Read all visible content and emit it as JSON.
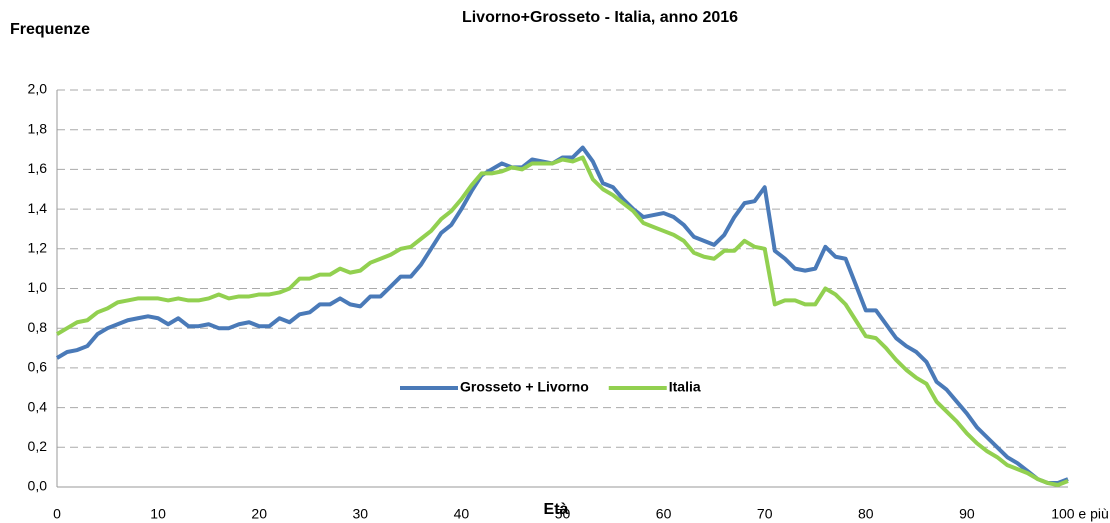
{
  "chart_data": {
    "type": "line",
    "title": "Livorno+Grosseto - Italia, anno 2016",
    "y_label": "Frequenze",
    "x_label": "Età",
    "categories": [
      0,
      null,
      null,
      null,
      null,
      null,
      null,
      null,
      null,
      null,
      10,
      null,
      null,
      null,
      null,
      null,
      null,
      null,
      null,
      null,
      20,
      null,
      null,
      null,
      null,
      null,
      null,
      null,
      null,
      null,
      30,
      null,
      null,
      null,
      null,
      null,
      null,
      null,
      null,
      null,
      40,
      null,
      null,
      null,
      null,
      null,
      null,
      null,
      null,
      null,
      50,
      null,
      null,
      null,
      null,
      null,
      null,
      null,
      null,
      null,
      60,
      null,
      null,
      null,
      null,
      null,
      null,
      null,
      null,
      null,
      70,
      null,
      null,
      null,
      null,
      null,
      null,
      null,
      null,
      null,
      80,
      null,
      null,
      null,
      null,
      null,
      null,
      null,
      null,
      null,
      90,
      null,
      null,
      null,
      null,
      null,
      null,
      null,
      null,
      null,
      "100 e più"
    ],
    "series": [
      {
        "name": "Grosseto + Livorno",
        "color": "#4a7ab8",
        "values": [
          0.65,
          0.68,
          0.69,
          0.71,
          0.77,
          0.8,
          0.82,
          0.84,
          0.85,
          0.86,
          0.85,
          0.82,
          0.85,
          0.81,
          0.81,
          0.82,
          0.8,
          0.8,
          0.82,
          0.83,
          0.81,
          0.81,
          0.85,
          0.83,
          0.87,
          0.88,
          0.92,
          0.92,
          0.95,
          0.92,
          0.91,
          0.96,
          0.96,
          1.01,
          1.06,
          1.06,
          1.12,
          1.2,
          1.28,
          1.32,
          1.4,
          1.49,
          1.57,
          1.6,
          1.63,
          1.61,
          1.61,
          1.65,
          1.64,
          1.63,
          1.66,
          1.66,
          1.71,
          1.64,
          1.53,
          1.51,
          1.45,
          1.4,
          1.36,
          1.37,
          1.38,
          1.36,
          1.32,
          1.26,
          1.24,
          1.22,
          1.27,
          1.36,
          1.43,
          1.44,
          1.51,
          1.19,
          1.15,
          1.1,
          1.09,
          1.1,
          1.21,
          1.16,
          1.15,
          1.02,
          0.89,
          0.89,
          0.82,
          0.75,
          0.71,
          0.68,
          0.63,
          0.53,
          0.49,
          0.43,
          0.37,
          0.3,
          0.25,
          0.2,
          0.15,
          0.12,
          0.08,
          0.04,
          0.02,
          0.02,
          0.04
        ]
      },
      {
        "name": "Italia",
        "color": "#92d050",
        "values": [
          0.77,
          0.8,
          0.83,
          0.84,
          0.88,
          0.9,
          0.93,
          0.94,
          0.95,
          0.95,
          0.95,
          0.94,
          0.95,
          0.94,
          0.94,
          0.95,
          0.97,
          0.95,
          0.96,
          0.96,
          0.97,
          0.97,
          0.98,
          1.0,
          1.05,
          1.05,
          1.07,
          1.07,
          1.1,
          1.08,
          1.09,
          1.13,
          1.15,
          1.17,
          1.2,
          1.21,
          1.25,
          1.29,
          1.35,
          1.39,
          1.45,
          1.52,
          1.58,
          1.58,
          1.59,
          1.61,
          1.6,
          1.63,
          1.63,
          1.63,
          1.65,
          1.64,
          1.66,
          1.55,
          1.5,
          1.47,
          1.43,
          1.39,
          1.33,
          1.31,
          1.29,
          1.27,
          1.24,
          1.18,
          1.16,
          1.15,
          1.19,
          1.19,
          1.24,
          1.21,
          1.2,
          0.92,
          0.94,
          0.94,
          0.92,
          0.92,
          1.0,
          0.97,
          0.92,
          0.84,
          0.76,
          0.75,
          0.7,
          0.64,
          0.59,
          0.55,
          0.52,
          0.43,
          0.38,
          0.33,
          0.27,
          0.22,
          0.18,
          0.15,
          0.11,
          0.09,
          0.07,
          0.04,
          0.02,
          0.01,
          0.03
        ]
      }
    ],
    "ylim": [
      0,
      2
    ],
    "yticks": [
      {
        "value": 0,
        "label": "0,0"
      },
      {
        "value": 0.2,
        "label": "0,2"
      },
      {
        "value": 0.4,
        "label": "0,4"
      },
      {
        "value": 0.6,
        "label": "0,6"
      },
      {
        "value": 0.8,
        "label": "0,8"
      },
      {
        "value": 1,
        "label": "1,0"
      },
      {
        "value": 1.2,
        "label": "1,2"
      },
      {
        "value": 1.4,
        "label": "1,4"
      },
      {
        "value": 1.6,
        "label": "1,6"
      },
      {
        "value": 1.8,
        "label": "1,8"
      },
      {
        "value": 2,
        "label": "2,0"
      }
    ],
    "grid": true,
    "legend": "center"
  }
}
